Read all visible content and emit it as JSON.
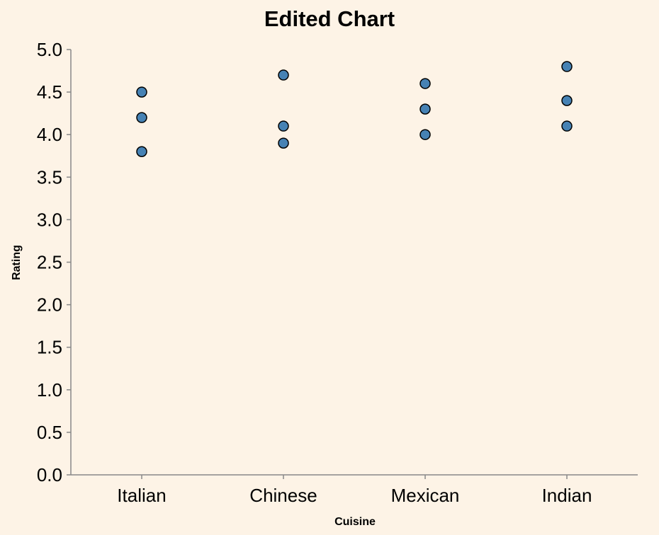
{
  "chart_data": {
    "type": "scatter",
    "title": "Edited Chart",
    "xlabel": "Cuisine",
    "ylabel": "Rating",
    "categories": [
      "Italian",
      "Chinese",
      "Mexican",
      "Indian"
    ],
    "ylim": [
      0,
      5
    ],
    "yticks": [
      0.0,
      0.5,
      1.0,
      1.5,
      2.0,
      2.5,
      3.0,
      3.5,
      4.0,
      4.5,
      5.0
    ],
    "grid": false,
    "point_color": "#4682b4",
    "background": "#fdf3e6",
    "points": [
      {
        "x": "Italian",
        "y": 4.5
      },
      {
        "x": "Italian",
        "y": 4.2
      },
      {
        "x": "Italian",
        "y": 3.8
      },
      {
        "x": "Chinese",
        "y": 4.7
      },
      {
        "x": "Chinese",
        "y": 4.1
      },
      {
        "x": "Chinese",
        "y": 3.9
      },
      {
        "x": "Mexican",
        "y": 4.6
      },
      {
        "x": "Mexican",
        "y": 4.3
      },
      {
        "x": "Mexican",
        "y": 4.0
      },
      {
        "x": "Indian",
        "y": 4.8
      },
      {
        "x": "Indian",
        "y": 4.4
      },
      {
        "x": "Indian",
        "y": 4.1
      }
    ]
  }
}
